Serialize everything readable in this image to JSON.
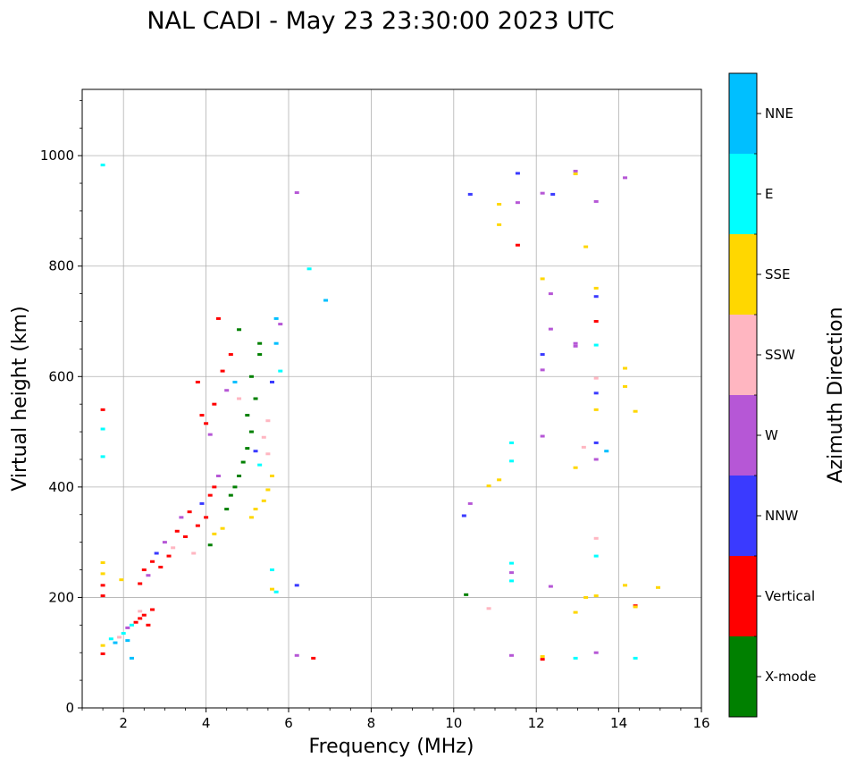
{
  "chart_data": {
    "type": "scatter",
    "title": "NAL CADI - May 23 23:30:00 2023 UTC",
    "xlabel": "Frequency (MHz)",
    "ylabel": "Virtual height (km)",
    "xlim": [
      1,
      16
    ],
    "ylim": [
      0,
      1120
    ],
    "xticks": [
      2,
      4,
      6,
      8,
      10,
      12,
      14,
      16
    ],
    "yticks": [
      0,
      200,
      400,
      600,
      800,
      1000
    ],
    "grid": true,
    "colorbar": {
      "label": "Azimuth Direction",
      "categories": [
        {
          "name": "X-mode",
          "color": "#008000"
        },
        {
          "name": "Vertical",
          "color": "#ff0000"
        },
        {
          "name": "NNW",
          "color": "#3a3aff"
        },
        {
          "name": "W",
          "color": "#b657d6"
        },
        {
          "name": "SSW",
          "color": "#ffb6c1"
        },
        {
          "name": "SSE",
          "color": "#ffd700"
        },
        {
          "name": "E",
          "color": "#00ffff"
        },
        {
          "name": "NNE",
          "color": "#00bfff"
        }
      ]
    },
    "echoes": [
      {
        "name": "E",
        "x": 1.5,
        "y": 983
      },
      {
        "name": "Vertical",
        "x": 1.5,
        "y": 540
      },
      {
        "name": "E",
        "x": 1.5,
        "y": 505
      },
      {
        "name": "E",
        "x": 1.5,
        "y": 455
      },
      {
        "name": "SSE",
        "x": 1.5,
        "y": 263
      },
      {
        "name": "SSE",
        "x": 1.5,
        "y": 243
      },
      {
        "name": "Vertical",
        "x": 1.5,
        "y": 222
      },
      {
        "name": "Vertical",
        "x": 1.5,
        "y": 203
      },
      {
        "name": "SSE",
        "x": 1.5,
        "y": 113
      },
      {
        "name": "Vertical",
        "x": 1.5,
        "y": 98
      },
      {
        "name": "E",
        "x": 1.7,
        "y": 125
      },
      {
        "name": "NNE",
        "x": 1.8,
        "y": 118
      },
      {
        "name": "SSW",
        "x": 1.9,
        "y": 128
      },
      {
        "name": "E",
        "x": 2.0,
        "y": 135
      },
      {
        "name": "NNE",
        "x": 2.1,
        "y": 122
      },
      {
        "name": "W",
        "x": 2.1,
        "y": 145
      },
      {
        "name": "E",
        "x": 2.2,
        "y": 150
      },
      {
        "name": "Vertical",
        "x": 2.3,
        "y": 155
      },
      {
        "name": "Vertical",
        "x": 2.4,
        "y": 162
      },
      {
        "name": "SSW",
        "x": 2.4,
        "y": 175
      },
      {
        "name": "Vertical",
        "x": 2.5,
        "y": 168
      },
      {
        "name": "Vertical",
        "x": 2.6,
        "y": 150
      },
      {
        "name": "Vertical",
        "x": 2.7,
        "y": 178
      },
      {
        "name": "NNE",
        "x": 2.2,
        "y": 90
      },
      {
        "name": "SSE",
        "x": 1.95,
        "y": 232
      },
      {
        "name": "Vertical",
        "x": 2.4,
        "y": 225
      },
      {
        "name": "Vertical",
        "x": 2.5,
        "y": 250
      },
      {
        "name": "W",
        "x": 2.6,
        "y": 240
      },
      {
        "name": "Vertical",
        "x": 2.7,
        "y": 265
      },
      {
        "name": "NNW",
        "x": 2.8,
        "y": 280
      },
      {
        "name": "Vertical",
        "x": 2.9,
        "y": 255
      },
      {
        "name": "W",
        "x": 3.0,
        "y": 300
      },
      {
        "name": "Vertical",
        "x": 3.1,
        "y": 275
      },
      {
        "name": "SSW",
        "x": 3.2,
        "y": 290
      },
      {
        "name": "Vertical",
        "x": 3.3,
        "y": 320
      },
      {
        "name": "W",
        "x": 3.4,
        "y": 345
      },
      {
        "name": "Vertical",
        "x": 3.5,
        "y": 310
      },
      {
        "name": "Vertical",
        "x": 3.6,
        "y": 355
      },
      {
        "name": "SSW",
        "x": 3.7,
        "y": 280
      },
      {
        "name": "Vertical",
        "x": 3.8,
        "y": 330
      },
      {
        "name": "NNW",
        "x": 3.9,
        "y": 370
      },
      {
        "name": "Vertical",
        "x": 4.0,
        "y": 345
      },
      {
        "name": "X-mode",
        "x": 4.1,
        "y": 295
      },
      {
        "name": "SSE",
        "x": 4.2,
        "y": 315
      },
      {
        "name": "SSE",
        "x": 4.4,
        "y": 325
      },
      {
        "name": "Vertical",
        "x": 4.1,
        "y": 385
      },
      {
        "name": "Vertical",
        "x": 4.2,
        "y": 400
      },
      {
        "name": "W",
        "x": 4.3,
        "y": 420
      },
      {
        "name": "Vertical",
        "x": 3.9,
        "y": 530
      },
      {
        "name": "Vertical",
        "x": 4.0,
        "y": 515
      },
      {
        "name": "W",
        "x": 4.1,
        "y": 495
      },
      {
        "name": "Vertical",
        "x": 4.2,
        "y": 550
      },
      {
        "name": "Vertical",
        "x": 3.8,
        "y": 590
      },
      {
        "name": "Vertical",
        "x": 4.4,
        "y": 610
      },
      {
        "name": "W",
        "x": 4.5,
        "y": 575
      },
      {
        "name": "Vertical",
        "x": 4.6,
        "y": 640
      },
      {
        "name": "NNE",
        "x": 4.7,
        "y": 590
      },
      {
        "name": "SSW",
        "x": 4.8,
        "y": 560
      },
      {
        "name": "Vertical",
        "x": 4.3,
        "y": 705
      },
      {
        "name": "X-mode",
        "x": 4.5,
        "y": 360
      },
      {
        "name": "X-mode",
        "x": 4.6,
        "y": 385
      },
      {
        "name": "X-mode",
        "x": 4.7,
        "y": 400
      },
      {
        "name": "X-mode",
        "x": 4.8,
        "y": 420
      },
      {
        "name": "X-mode",
        "x": 4.9,
        "y": 445
      },
      {
        "name": "X-mode",
        "x": 5.0,
        "y": 470
      },
      {
        "name": "X-mode",
        "x": 5.1,
        "y": 500
      },
      {
        "name": "X-mode",
        "x": 5.0,
        "y": 530
      },
      {
        "name": "X-mode",
        "x": 5.2,
        "y": 560
      },
      {
        "name": "X-mode",
        "x": 5.1,
        "y": 600
      },
      {
        "name": "X-mode",
        "x": 5.3,
        "y": 640
      },
      {
        "name": "X-mode",
        "x": 4.8,
        "y": 685
      },
      {
        "name": "SSE",
        "x": 5.1,
        "y": 345
      },
      {
        "name": "SSE",
        "x": 5.2,
        "y": 360
      },
      {
        "name": "SSE",
        "x": 5.4,
        "y": 375
      },
      {
        "name": "SSE",
        "x": 5.5,
        "y": 395
      },
      {
        "name": "SSE",
        "x": 5.6,
        "y": 420
      },
      {
        "name": "SSW",
        "x": 5.5,
        "y": 460
      },
      {
        "name": "SSW",
        "x": 5.4,
        "y": 490
      },
      {
        "name": "SSW",
        "x": 5.5,
        "y": 520
      },
      {
        "name": "E",
        "x": 5.3,
        "y": 440
      },
      {
        "name": "NNW",
        "x": 5.2,
        "y": 465
      },
      {
        "name": "NNE",
        "x": 5.7,
        "y": 705
      },
      {
        "name": "W",
        "x": 5.8,
        "y": 695
      },
      {
        "name": "NNE",
        "x": 5.7,
        "y": 660
      },
      {
        "name": "E",
        "x": 5.8,
        "y": 610
      },
      {
        "name": "NNW",
        "x": 5.6,
        "y": 590
      },
      {
        "name": "X-mode",
        "x": 5.3,
        "y": 660
      },
      {
        "name": "E",
        "x": 5.6,
        "y": 250
      },
      {
        "name": "E",
        "x": 5.7,
        "y": 210
      },
      {
        "name": "SSE",
        "x": 5.6,
        "y": 215
      },
      {
        "name": "NNW",
        "x": 6.2,
        "y": 222
      },
      {
        "name": "W",
        "x": 6.2,
        "y": 95
      },
      {
        "name": "Vertical",
        "x": 6.6,
        "y": 90
      },
      {
        "name": "W",
        "x": 6.2,
        "y": 933
      },
      {
        "name": "E",
        "x": 6.5,
        "y": 795
      },
      {
        "name": "NNE",
        "x": 6.9,
        "y": 738
      },
      {
        "name": "NNW",
        "x": 10.4,
        "y": 930
      },
      {
        "name": "X-mode",
        "x": 10.3,
        "y": 205
      },
      {
        "name": "NNW",
        "x": 10.25,
        "y": 348
      },
      {
        "name": "W",
        "x": 10.4,
        "y": 370
      },
      {
        "name": "SSE",
        "x": 10.85,
        "y": 402
      },
      {
        "name": "SSW",
        "x": 10.85,
        "y": 180
      },
      {
        "name": "SSE",
        "x": 11.1,
        "y": 912
      },
      {
        "name": "SSE",
        "x": 11.1,
        "y": 875
      },
      {
        "name": "SSE",
        "x": 11.1,
        "y": 413
      },
      {
        "name": "NNW",
        "x": 11.55,
        "y": 968
      },
      {
        "name": "W",
        "x": 11.55,
        "y": 915
      },
      {
        "name": "Vertical",
        "x": 11.55,
        "y": 838
      },
      {
        "name": "E",
        "x": 11.4,
        "y": 480
      },
      {
        "name": "E",
        "x": 11.4,
        "y": 447
      },
      {
        "name": "E",
        "x": 11.4,
        "y": 262
      },
      {
        "name": "W",
        "x": 11.4,
        "y": 245
      },
      {
        "name": "E",
        "x": 11.4,
        "y": 230
      },
      {
        "name": "W",
        "x": 11.4,
        "y": 95
      },
      {
        "name": "W",
        "x": 12.15,
        "y": 932
      },
      {
        "name": "NNW",
        "x": 12.4,
        "y": 930
      },
      {
        "name": "SSE",
        "x": 12.15,
        "y": 777
      },
      {
        "name": "W",
        "x": 12.35,
        "y": 750
      },
      {
        "name": "W",
        "x": 12.35,
        "y": 686
      },
      {
        "name": "NNW",
        "x": 12.15,
        "y": 640
      },
      {
        "name": "W",
        "x": 12.15,
        "y": 612
      },
      {
        "name": "W",
        "x": 12.15,
        "y": 492
      },
      {
        "name": "W",
        "x": 12.35,
        "y": 220
      },
      {
        "name": "SSE",
        "x": 12.15,
        "y": 93
      },
      {
        "name": "Vertical",
        "x": 12.15,
        "y": 88
      },
      {
        "name": "W",
        "x": 12.95,
        "y": 972
      },
      {
        "name": "SSE",
        "x": 12.95,
        "y": 967
      },
      {
        "name": "W",
        "x": 12.95,
        "y": 660
      },
      {
        "name": "W",
        "x": 12.95,
        "y": 655
      },
      {
        "name": "SSW",
        "x": 13.15,
        "y": 472
      },
      {
        "name": "SSE",
        "x": 12.95,
        "y": 435
      },
      {
        "name": "SSE",
        "x": 12.95,
        "y": 173
      },
      {
        "name": "E",
        "x": 12.95,
        "y": 90
      },
      {
        "name": "SSE",
        "x": 13.2,
        "y": 835
      },
      {
        "name": "SSE",
        "x": 13.2,
        "y": 200
      },
      {
        "name": "W",
        "x": 13.45,
        "y": 917
      },
      {
        "name": "SSE",
        "x": 13.45,
        "y": 760
      },
      {
        "name": "NNW",
        "x": 13.45,
        "y": 745
      },
      {
        "name": "Vertical",
        "x": 13.45,
        "y": 700
      },
      {
        "name": "E",
        "x": 13.45,
        "y": 657
      },
      {
        "name": "SSW",
        "x": 13.45,
        "y": 597
      },
      {
        "name": "NNW",
        "x": 13.45,
        "y": 570
      },
      {
        "name": "SSE",
        "x": 13.45,
        "y": 540
      },
      {
        "name": "NNW",
        "x": 13.45,
        "y": 480
      },
      {
        "name": "W",
        "x": 13.45,
        "y": 450
      },
      {
        "name": "SSW",
        "x": 13.45,
        "y": 307
      },
      {
        "name": "E",
        "x": 13.45,
        "y": 275
      },
      {
        "name": "SSE",
        "x": 13.45,
        "y": 203
      },
      {
        "name": "W",
        "x": 13.45,
        "y": 100
      },
      {
        "name": "NNE",
        "x": 13.7,
        "y": 465
      },
      {
        "name": "W",
        "x": 14.15,
        "y": 960
      },
      {
        "name": "SSE",
        "x": 14.15,
        "y": 615
      },
      {
        "name": "SSE",
        "x": 14.15,
        "y": 582
      },
      {
        "name": "SSE",
        "x": 14.15,
        "y": 222
      },
      {
        "name": "SSE",
        "x": 14.4,
        "y": 537
      },
      {
        "name": "Vertical",
        "x": 14.4,
        "y": 185
      },
      {
        "name": "SSE",
        "x": 14.4,
        "y": 183
      },
      {
        "name": "E",
        "x": 14.4,
        "y": 90
      },
      {
        "name": "SSE",
        "x": 14.95,
        "y": 218
      }
    ]
  }
}
